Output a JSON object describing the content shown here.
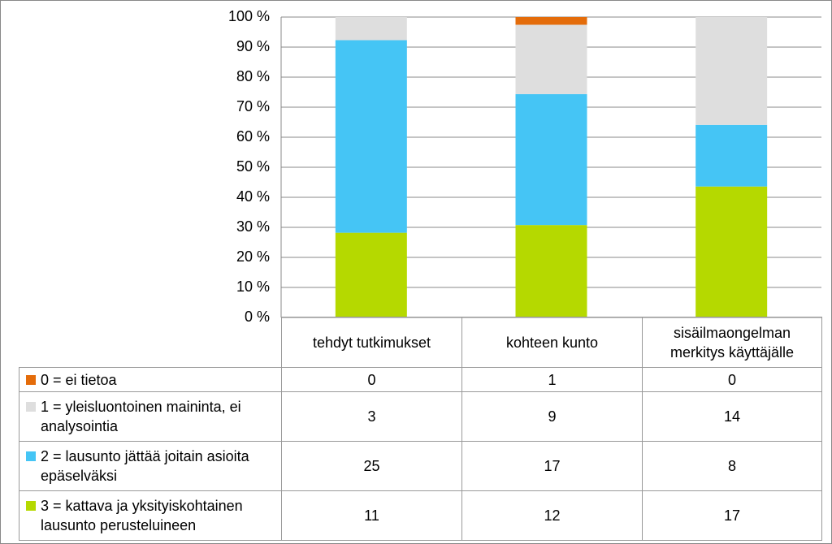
{
  "chart_data": {
    "type": "stacked_percent_bar",
    "categories": [
      "tehdyt tutkimukset",
      "kohteen kunto",
      "sisäilmaongelman merkitys käyttäjälle"
    ],
    "series": [
      {
        "name": "0 = ei tietoa",
        "color": "#e46c0a",
        "values": [
          0,
          1,
          0
        ]
      },
      {
        "name": "1 = yleisluontoinen maininta, ei analysointia",
        "color": "#dedede",
        "values": [
          3,
          9,
          14
        ]
      },
      {
        "name": "2 = lausunto jättää joitain asioita epäselväksi",
        "color": "#45c5f5",
        "values": [
          25,
          17,
          8
        ]
      },
      {
        "name": "3 = kattava ja yksityiskohtainen lausunto perusteluineen",
        "color": "#b5d900",
        "values": [
          11,
          12,
          17
        ]
      }
    ],
    "ylim": [
      0,
      100
    ],
    "yticks": [
      {
        "value": 0,
        "label": "0 %"
      },
      {
        "value": 10,
        "label": "10 %"
      },
      {
        "value": 20,
        "label": "20 %"
      },
      {
        "value": 30,
        "label": "30 %"
      },
      {
        "value": 40,
        "label": "40 %"
      },
      {
        "value": 50,
        "label": "50 %"
      },
      {
        "value": 60,
        "label": "60 %"
      },
      {
        "value": 70,
        "label": "70 %"
      },
      {
        "value": 80,
        "label": "80 %"
      },
      {
        "value": 90,
        "label": "90 %"
      },
      {
        "value": 100,
        "label": "100 %"
      }
    ],
    "grid": true
  }
}
